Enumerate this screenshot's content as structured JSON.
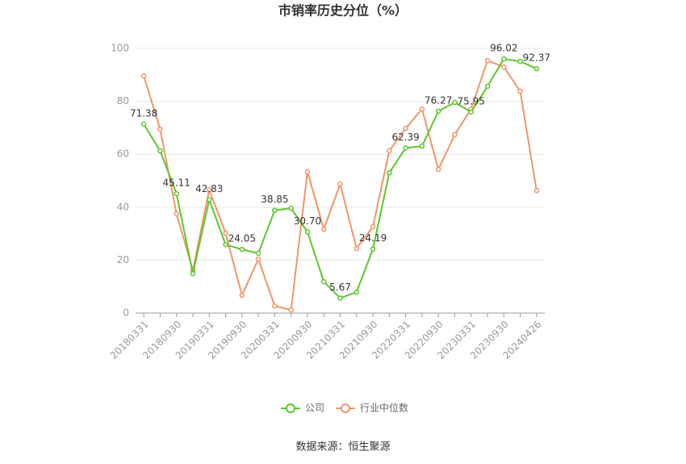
{
  "chart_data": {
    "type": "line",
    "title": "市销率历史分位（%）",
    "source": "数据来源：恒生聚源",
    "categories": [
      "20180331",
      null,
      "20180930",
      null,
      "20190331",
      null,
      "20190930",
      null,
      "20200331",
      null,
      "20200930",
      null,
      "20210331",
      null,
      "20210930",
      null,
      "20220331",
      null,
      "20220930",
      null,
      "20230331",
      null,
      "20230930",
      null,
      "20240426"
    ],
    "series": [
      {
        "name": "公司",
        "color": "#5cc72c",
        "values": [
          71.38,
          61.3,
          45.11,
          14.9,
          42.83,
          25.9,
          24.05,
          22.6,
          38.85,
          39.6,
          30.7,
          11.9,
          5.67,
          7.9,
          24.19,
          53.0,
          62.39,
          63.1,
          76.27,
          79.6,
          75.95,
          85.7,
          96.02,
          95.1,
          92.37
        ],
        "value_labels": [
          "71.38",
          null,
          "45.11",
          null,
          "42.83",
          null,
          "24.05",
          null,
          "38.85",
          null,
          "30.70",
          null,
          "5.67",
          null,
          "24.19",
          null,
          "62.39",
          null,
          "76.27",
          null,
          "75.95",
          null,
          "96.02",
          null,
          "92.37"
        ]
      },
      {
        "name": "行业中位数",
        "color": "#f0956a",
        "values": [
          89.6,
          69.5,
          37.5,
          16.2,
          46.6,
          30.2,
          6.7,
          20.4,
          2.7,
          1.2,
          53.4,
          31.7,
          48.8,
          24.4,
          32.6,
          61.3,
          69.8,
          77.1,
          54.3,
          67.4,
          77.1,
          95.4,
          93.0,
          83.8,
          46.3
        ]
      }
    ],
    "ylim": [
      0,
      100
    ],
    "yticks": [
      0,
      20,
      40,
      60,
      80,
      100
    ],
    "grid": true,
    "legend": "bottom"
  }
}
